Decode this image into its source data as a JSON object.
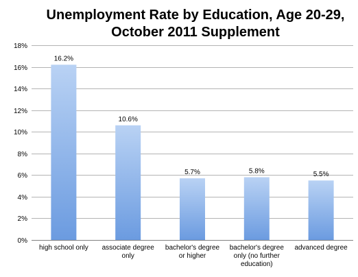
{
  "chart_data": {
    "type": "bar",
    "title_lines": [
      "Unemployment Rate by Education, Age 20-29,",
      "October 2011 Supplement"
    ],
    "categories": [
      [
        "high school only"
      ],
      [
        "associate degree",
        "only"
      ],
      [
        "bachelor's degree",
        "or higher"
      ],
      [
        "bachelor's degree",
        "only (no further",
        "education)"
      ],
      [
        "advanced degree"
      ]
    ],
    "values": [
      16.2,
      10.6,
      5.7,
      5.8,
      5.5
    ],
    "value_labels": [
      "16.2%",
      "10.6%",
      "5.7%",
      "5.8%",
      "5.5%"
    ],
    "ylim": [
      0,
      18
    ],
    "yticks": [
      {
        "value": 0,
        "label": "0%"
      },
      {
        "value": 2,
        "label": "2%"
      },
      {
        "value": 4,
        "label": "4%"
      },
      {
        "value": 6,
        "label": "6%"
      },
      {
        "value": 8,
        "label": "8%"
      },
      {
        "value": 10,
        "label": "10%"
      },
      {
        "value": 12,
        "label": "12%"
      },
      {
        "value": 14,
        "label": "14%"
      },
      {
        "value": 16,
        "label": "16%"
      },
      {
        "value": 18,
        "label": "18%"
      }
    ],
    "grid": true,
    "legend": "none",
    "colors": {
      "bar_top": "#b9d2f4",
      "bar_bottom": "#6b9be0",
      "grid": "#b3b3b3",
      "axis": "#808080"
    }
  }
}
